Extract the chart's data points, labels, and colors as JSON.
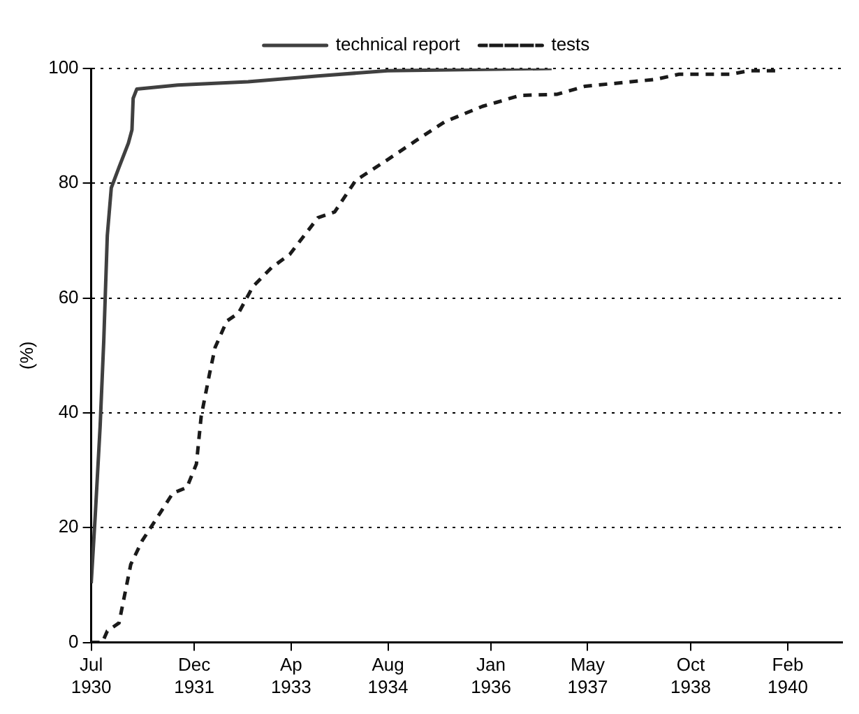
{
  "chart_data": {
    "type": "line",
    "ylabel": "(%)",
    "legend": "top",
    "grid": "y",
    "marker": "none",
    "xlim": [
      "1930-07",
      "1940-11"
    ],
    "xticks": [
      {
        "value": "1930-07",
        "label": "Jul 1930"
      },
      {
        "value": "1931-12",
        "label": "Dec 1931"
      },
      {
        "value": "1933-04",
        "label": "Ap 1933"
      },
      {
        "value": "1934-08",
        "label": "Aug 1934"
      },
      {
        "value": "1936-01",
        "label": "Jan 1936"
      },
      {
        "value": "1937-05",
        "label": "May 1937"
      },
      {
        "value": "1938-10",
        "label": "Oct 1938"
      },
      {
        "value": "1940-02",
        "label": "Feb 1940"
      }
    ],
    "ylim": [
      0,
      100
    ],
    "yticks": [
      0,
      20,
      40,
      60,
      80,
      100
    ],
    "series": [
      {
        "name": "technical report",
        "color": "#404040",
        "line_style": "solid",
        "x": [
          "1930-07-01",
          "1930-07-21",
          "1930-08-15",
          "1930-09-02",
          "1930-09-20",
          "1930-10-10",
          "1930-11-18",
          "1931-01-04",
          "1931-01-22",
          "1931-01-28",
          "1931-02-15",
          "1931-09-09",
          "1932-08-28",
          "1933-08-14",
          "1934-07-30",
          "1936-11-01"
        ],
        "values": [
          10.3,
          21.9,
          37.7,
          52.4,
          70.9,
          79.2,
          82.8,
          87,
          89.3,
          94.8,
          96.4,
          97.1,
          97.7,
          98.7,
          99.6,
          100
        ]
      },
      {
        "name": "tests",
        "color": "#1a1a1a",
        "line_style": "dashed",
        "x": [
          "1930-07-01",
          "1930-08-26",
          "1930-09-20",
          "1930-11-18",
          "1931-01-16",
          "1931-03-14",
          "1931-06-17",
          "1931-08-15",
          "1931-10-25",
          "1931-12-12",
          "1932-01-05",
          "1932-02-16",
          "1932-03-15",
          "1932-05-13",
          "1932-07-11",
          "1932-09-21",
          "1932-12-24",
          "1933-03-25",
          "1933-08-14",
          "1933-11-06",
          "1934-02-20",
          "1934-08-03",
          "1934-12-23",
          "1935-05-13",
          "1935-11-19",
          "1936-01-29",
          "1936-05-25",
          "1936-11-29",
          "1937-04-18",
          "1938-04-08",
          "1938-08-04",
          "1939-04-20",
          "1939-07-23",
          "1940-01-03"
        ],
        "values": [
          0,
          0,
          2,
          3.4,
          13.6,
          17.7,
          22.8,
          26,
          27,
          31.1,
          39.4,
          46.8,
          51.4,
          56,
          57.4,
          62,
          65.3,
          67.6,
          74,
          75,
          80.5,
          84.2,
          87.5,
          90.7,
          93.4,
          94.1,
          95.3,
          95.5,
          96.9,
          98.1,
          99,
          99,
          99.6,
          99.6
        ]
      }
    ]
  }
}
